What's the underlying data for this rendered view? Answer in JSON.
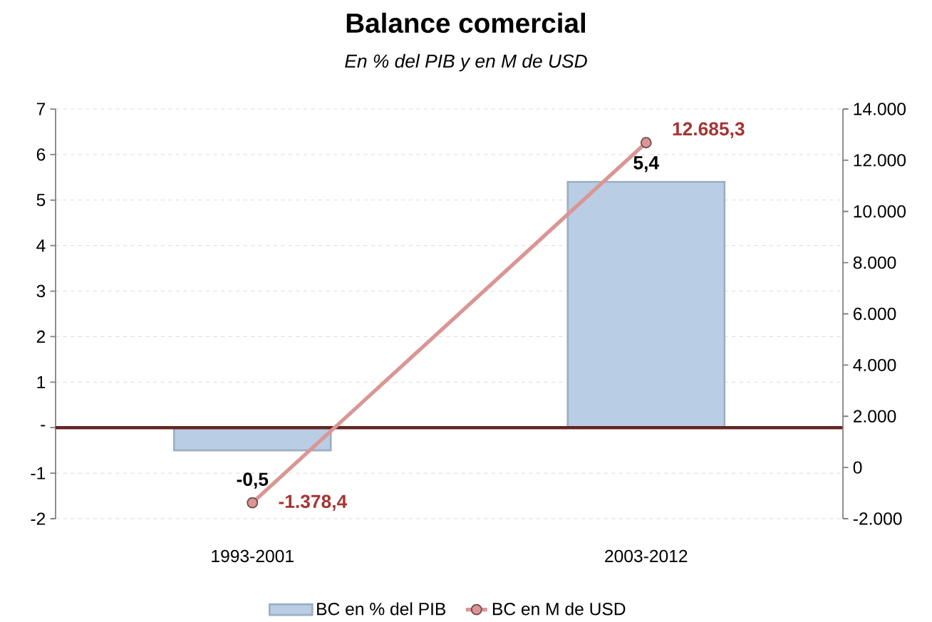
{
  "chart_data": {
    "type": "bar",
    "title": "Balance comercial",
    "subtitle": "En % del PIB y en M de USD",
    "categories": [
      "1993-2001",
      "2003-2012"
    ],
    "series": [
      {
        "name": "BC en % del PIB",
        "color": "#b9cde5",
        "values": [
          -0.5,
          5.4
        ],
        "value_labels": [
          "-0,5",
          "5,4"
        ]
      },
      {
        "name": "BC en M de USD",
        "type": "line",
        "axis": "y2",
        "color": "#d99694",
        "values": [
          -1378.4,
          12685.3
        ],
        "value_labels": [
          "-1.378,4",
          "12.685,3"
        ]
      }
    ],
    "ylim": [
      -2,
      7
    ],
    "yticks": [
      -2,
      -1,
      {
        "value": 0,
        "label": "-"
      },
      1,
      2,
      3,
      4,
      5,
      6,
      7
    ],
    "y2lim": [
      -2000,
      14000
    ],
    "y2ticks": [
      {
        "value": -2000,
        "label": "-2.000"
      },
      0,
      {
        "value": 2000,
        "label": "2.000"
      },
      {
        "value": 4000,
        "label": "4.000"
      },
      {
        "value": 6000,
        "label": "6.000"
      },
      {
        "value": 8000,
        "label": "8.000"
      },
      {
        "value": 10000,
        "label": "10.000"
      },
      {
        "value": 12000,
        "label": "12.000"
      },
      {
        "value": 14000,
        "label": "14.000"
      }
    ],
    "grid": "y",
    "legend": "bottom",
    "marker": "circle",
    "line_style": "solid"
  }
}
